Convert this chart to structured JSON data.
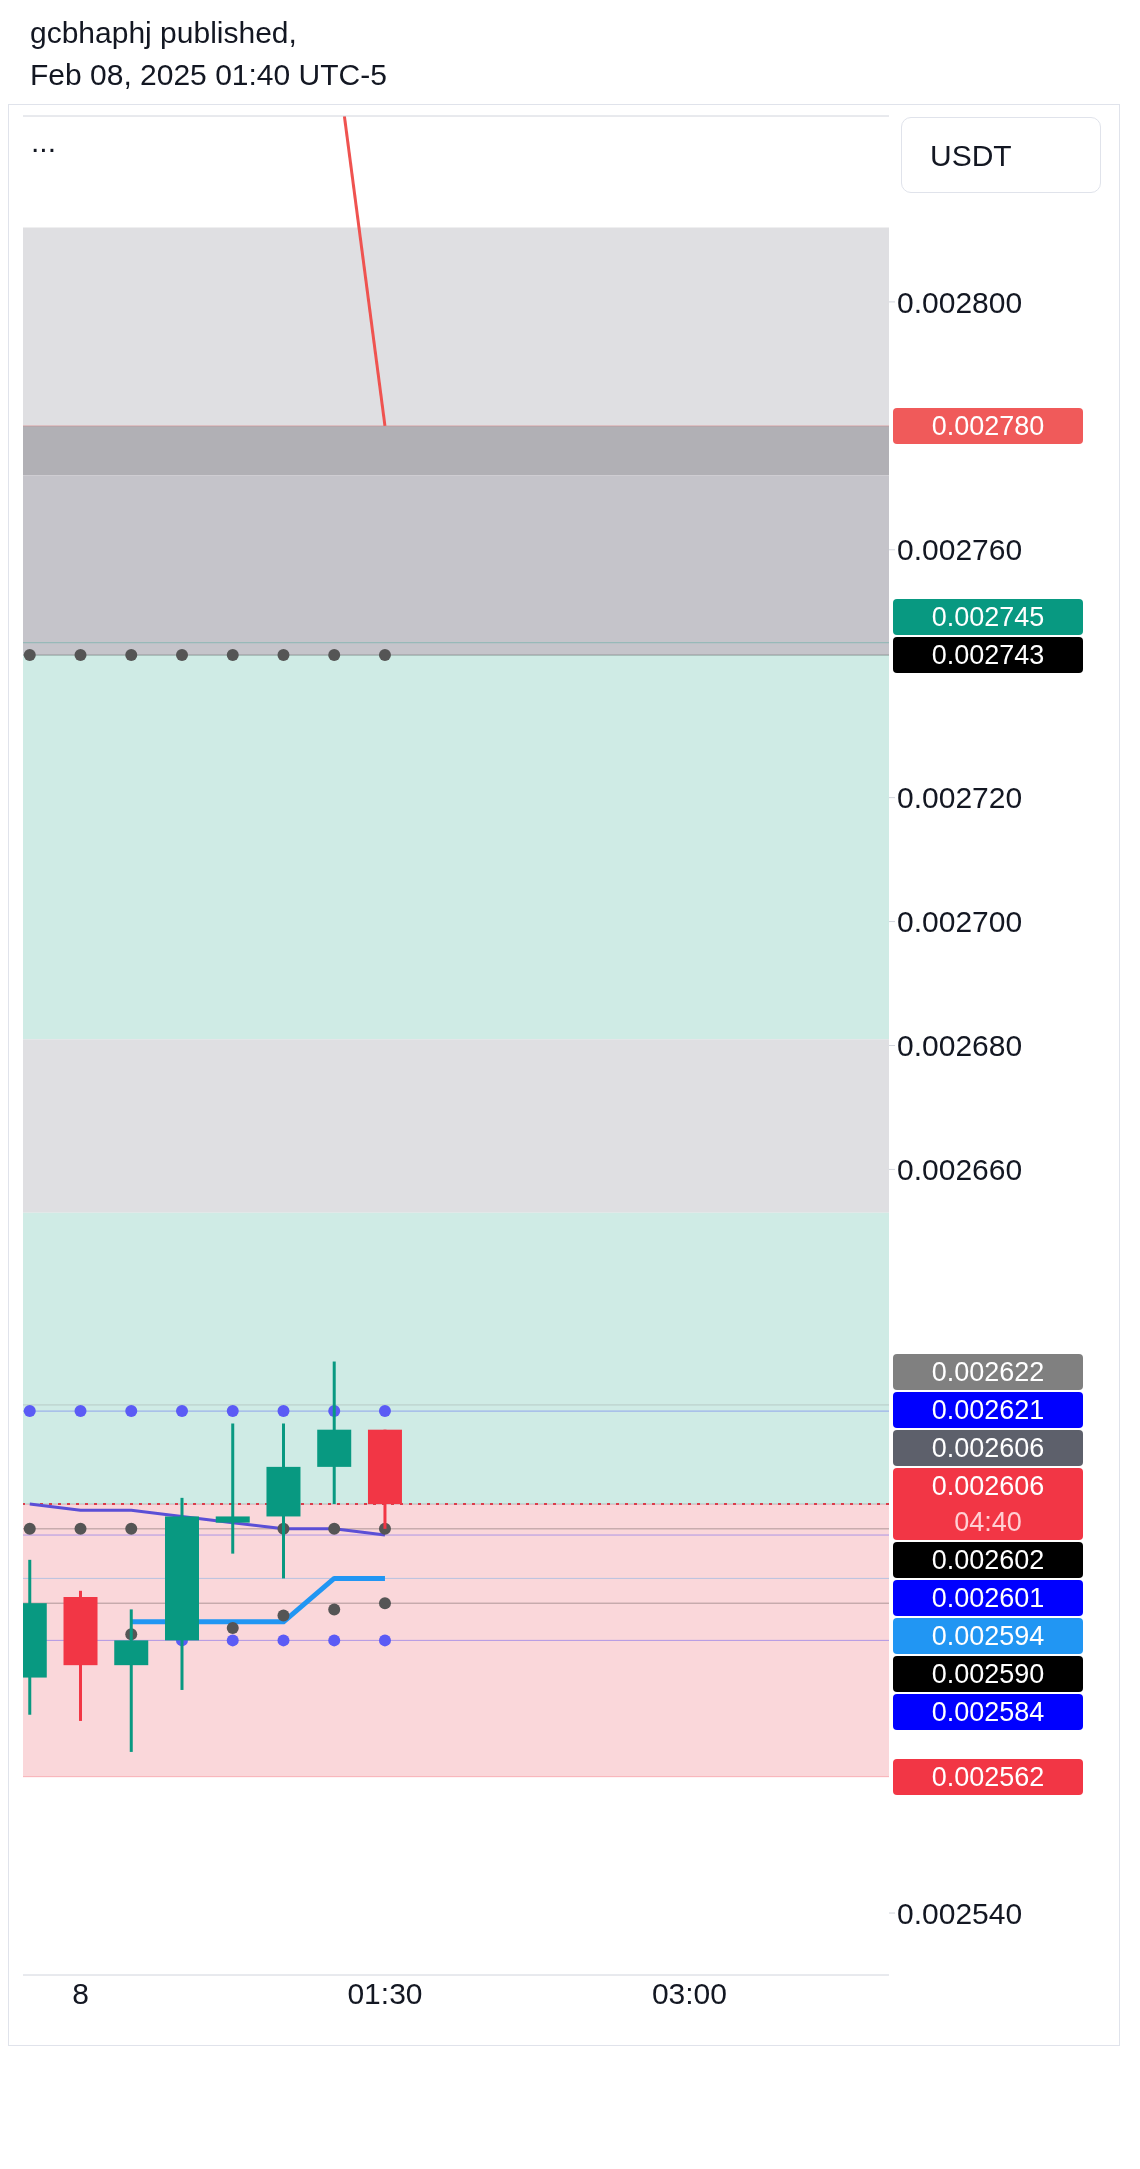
{
  "chart_data": {
    "type": "candlestick",
    "title": "gcbhaphj published,",
    "subtitle": "Feb 08, 2025 01:40 UTC-5",
    "ylabel": "USDT",
    "annotations": [
      "...",
      "04:40"
    ],
    "x": [
      "2025-02-07T23:45",
      "2025-02-08T00:00",
      "2025-02-08T00:15",
      "2025-02-08T00:30",
      "2025-02-08T00:45",
      "2025-02-08T01:00",
      "2025-02-08T01:15",
      "2025-02-08T01:30"
    ],
    "ohlc": [
      [
        0.002578,
        0.002597,
        0.002572,
        0.00259
      ],
      [
        0.002591,
        0.002592,
        0.002571,
        0.00258
      ],
      [
        0.00258,
        0.002589,
        0.002566,
        0.002584
      ],
      [
        0.002584,
        0.002607,
        0.002576,
        0.002604
      ],
      [
        0.002603,
        0.002619,
        0.002598,
        0.002604
      ],
      [
        0.002604,
        0.002619,
        0.002594,
        0.002612
      ],
      [
        0.002612,
        0.002629,
        0.002606,
        0.002618
      ],
      [
        0.002618,
        0.002618,
        0.002602,
        0.002606
      ]
    ],
    "colors": [
      "#089981",
      "#f23645",
      "#089981",
      "#089981",
      "#089981",
      "#089981",
      "#089981",
      "#f23645"
    ],
    "series": [
      {
        "type": "line",
        "color": "#2196f3",
        "values": [
          null,
          null,
          0.002587,
          null,
          0.002587,
          0.002587,
          0.002594,
          0.002594
        ]
      },
      {
        "type": "line",
        "color": "#5b4fd6",
        "values": [
          0.002606,
          0.002605,
          0.002605,
          0.002604,
          0.002603,
          0.002602,
          0.002602,
          0.002601
        ]
      },
      {
        "type": "scatter",
        "color": "#5b5bf5",
        "values": [
          0.002621,
          0.002621,
          0.002621,
          0.002621,
          0.002621,
          0.002621,
          0.002621,
          0.002621
        ]
      },
      {
        "type": "scatter",
        "color": "#5b5bf5",
        "values": [
          null,
          null,
          null,
          0.002584,
          0.002584,
          0.002584,
          0.002584,
          0.002584
        ]
      },
      {
        "type": "scatter",
        "color": "#555555",
        "values": [
          0.002743,
          0.002743,
          0.002743,
          0.002743,
          0.002743,
          0.002743,
          0.002743,
          0.002743
        ]
      },
      {
        "type": "scatter",
        "color": "#555555",
        "values": [
          0.002602,
          0.002602,
          0.002602,
          null,
          null,
          0.002602,
          0.002602,
          0.002602
        ]
      },
      {
        "type": "scatter",
        "color": "#555555",
        "values": [
          null,
          null,
          0.002585,
          null,
          0.002586,
          0.002588,
          0.002589,
          0.00259
        ]
      },
      {
        "type": "line",
        "color": "#ef5350",
        "x": [
          "2025-02-08T01:18",
          "2025-02-08T01:30"
        ],
        "values": [
          0.00283,
          0.00278
        ]
      }
    ],
    "bands": [
      {
        "axis": "y",
        "from": 0.00278,
        "to": 0.002812,
        "color": "#dfdfe2"
      },
      {
        "axis": "y",
        "from": 0.002772,
        "to": 0.00278,
        "color": "#b1b0b5"
      },
      {
        "axis": "y",
        "from": 0.002743,
        "to": 0.002772,
        "color": "#c5c4ca"
      },
      {
        "axis": "y",
        "from": 0.002681,
        "to": 0.002743,
        "color": "#cfebe5"
      },
      {
        "axis": "y",
        "from": 0.002653,
        "to": 0.002681,
        "color": "#dfdfe2"
      },
      {
        "axis": "y",
        "from": 0.002606,
        "to": 0.002653,
        "color": "#cfebe5"
      },
      {
        "axis": "y",
        "from": 0.002562,
        "to": 0.002606,
        "color": "#fad7da"
      }
    ],
    "ref_lines": [
      {
        "axis": "y",
        "value": 0.00278,
        "label": "0.002780",
        "color": "#f05a5a"
      },
      {
        "axis": "y",
        "value": 0.002745,
        "label": "0.002745",
        "color": "#089981"
      },
      {
        "axis": "y",
        "value": 0.002743,
        "label": "0.002743",
        "color": "#000000"
      },
      {
        "axis": "y",
        "value": 0.002622,
        "label": "0.002622",
        "color": "#808080"
      },
      {
        "axis": "y",
        "value": 0.002621,
        "label": "0.002621",
        "color": "#0000ff"
      },
      {
        "axis": "y",
        "value": 0.002606,
        "label": "0.002606",
        "color": "#f23645",
        "line_style": "dotted"
      },
      {
        "axis": "y",
        "value": 0.002606,
        "label": "0.002606",
        "color": "#5d606b"
      },
      {
        "axis": "y",
        "value": 0.002602,
        "label": "0.002602",
        "color": "#000000"
      },
      {
        "axis": "y",
        "value": 0.002601,
        "label": "0.002601",
        "color": "#0000ff"
      },
      {
        "axis": "y",
        "value": 0.002594,
        "label": "0.002594",
        "color": "#2196f3"
      },
      {
        "axis": "y",
        "value": 0.00259,
        "label": "0.002590",
        "color": "#000000"
      },
      {
        "axis": "y",
        "value": 0.002584,
        "label": "0.002584",
        "color": "#0000ff"
      },
      {
        "axis": "y",
        "value": 0.002562,
        "label": "0.002562",
        "color": "#f23645"
      }
    ],
    "xlim": [
      "2025-02-07T23:43",
      "2025-02-08T03:59"
    ],
    "xticks": [
      {
        "value": "2025-02-08T00:00",
        "label": "8"
      },
      {
        "value": "2025-02-08T01:30",
        "label": "01:30"
      },
      {
        "value": "2025-02-08T03:00",
        "label": "03:00"
      }
    ],
    "ylim": [
      0.00253,
      0.00283
    ],
    "yticks": [
      {
        "value": 0.00254,
        "label": "0.002540"
      },
      {
        "value": 0.00266,
        "label": "0.002660"
      },
      {
        "value": 0.00268,
        "label": "0.002680"
      },
      {
        "value": 0.0027,
        "label": "0.002700"
      },
      {
        "value": 0.00272,
        "label": "0.002720"
      },
      {
        "value": 0.00276,
        "label": "0.002760"
      },
      {
        "value": 0.0028,
        "label": "0.002800"
      }
    ]
  }
}
